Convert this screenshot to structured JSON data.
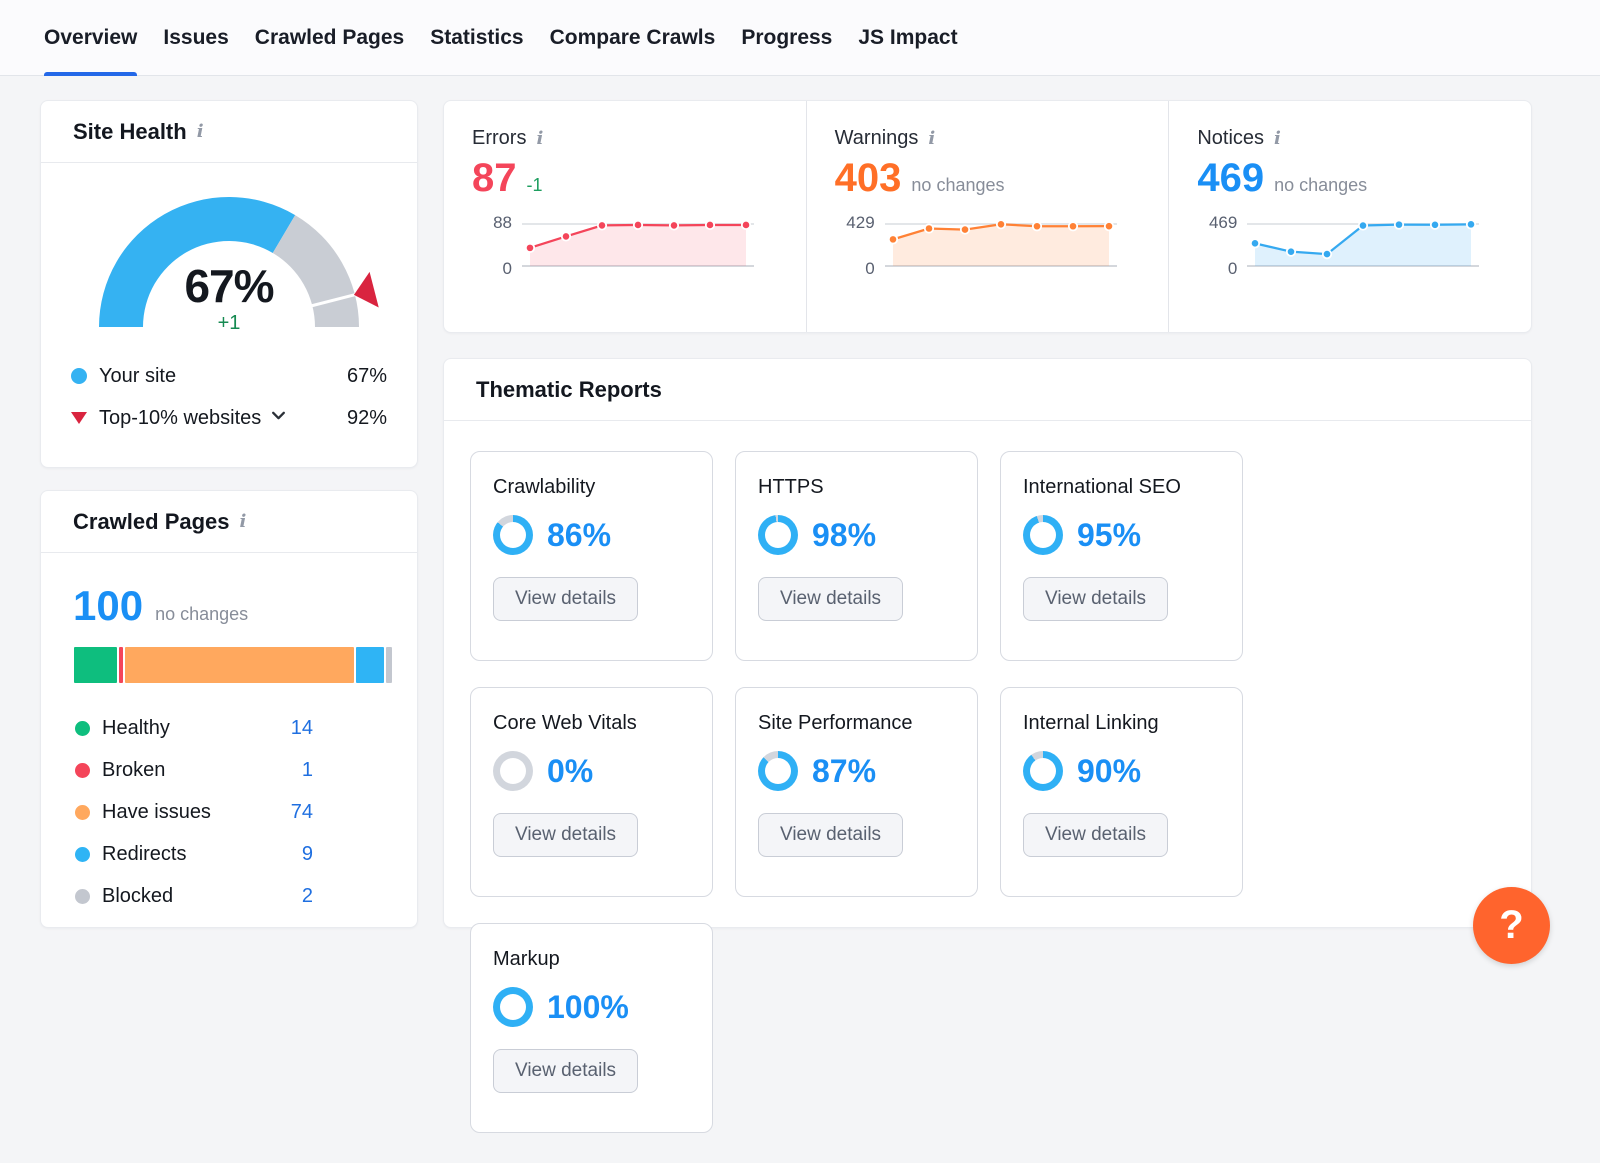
{
  "tabs": [
    {
      "label": "Overview",
      "active": true
    },
    {
      "label": "Issues",
      "active": false
    },
    {
      "label": "Crawled Pages",
      "active": false
    },
    {
      "label": "Statistics",
      "active": false
    },
    {
      "label": "Compare Crawls",
      "active": false
    },
    {
      "label": "Progress",
      "active": false
    },
    {
      "label": "JS Impact",
      "active": false
    }
  ],
  "site_health": {
    "title": "Site Health",
    "score": 67,
    "score_label": "67%",
    "delta": "+1",
    "benchmark": 92,
    "colors": {
      "arc": "#35b2f2",
      "track": "#c9cdd4",
      "marker": "#d9243f"
    },
    "legend": [
      {
        "label": "Your site",
        "value": "67%",
        "marker": "dot",
        "color": "#35b2f2",
        "has_chevron": false
      },
      {
        "label": "Top-10% websites",
        "value": "92%",
        "marker": "triangle",
        "color": "#d9243f",
        "has_chevron": true
      }
    ]
  },
  "crawled_pages": {
    "title": "Crawled Pages",
    "total": "100",
    "change": "no changes",
    "segments": [
      {
        "label": "Healthy",
        "value": 14,
        "color": "#0ebe7e"
      },
      {
        "label": "Broken",
        "value": 1,
        "color": "#f4455a"
      },
      {
        "label": "Have issues",
        "value": 74,
        "color": "#ffa85e"
      },
      {
        "label": "Redirects",
        "value": 9,
        "color": "#2fb4f5"
      },
      {
        "label": "Blocked",
        "value": 2,
        "color": "#c3c7cf"
      }
    ]
  },
  "stats": [
    {
      "title": "Errors",
      "value": "87",
      "delta": "-1",
      "value_color": "#f4455a",
      "delta_color": "#1e9e5f",
      "line_color": "#f4455a",
      "fill_color": "rgba(244,69,90,0.13)",
      "axis_max_label": "88",
      "axis_min_label": "0",
      "chart": {
        "type": "area",
        "ylim": [
          0,
          88
        ],
        "points": [
          38,
          62,
          85,
          86,
          85,
          86,
          86
        ]
      }
    },
    {
      "title": "Warnings",
      "value": "403",
      "delta": "no changes",
      "value_color": "#ff6f27",
      "delta_color": "#878d99",
      "line_color": "#ff8135",
      "fill_color": "rgba(255,129,53,0.16)",
      "axis_max_label": "429",
      "axis_min_label": "0",
      "chart": {
        "type": "area",
        "ylim": [
          0,
          429
        ],
        "points": [
          272,
          383,
          372,
          426,
          406,
          406,
          407
        ]
      }
    },
    {
      "title": "Notices",
      "value": "469",
      "delta": "no changes",
      "value_color": "#1a8ff5",
      "delta_color": "#878d99",
      "line_color": "#35a9f0",
      "fill_color": "rgba(53,169,240,0.16)",
      "axis_max_label": "469",
      "axis_min_label": "0",
      "chart": {
        "type": "area",
        "ylim": [
          0,
          469
        ],
        "points": [
          253,
          160,
          133,
          452,
          462,
          460,
          465
        ]
      }
    }
  ],
  "thematic": {
    "title": "Thematic Reports",
    "button_label": "View details",
    "donut_color": "#2fb0f5",
    "donut_track": "#d2d6dd",
    "cards": [
      {
        "title": "Crawlability",
        "percent": 86,
        "label": "86%"
      },
      {
        "title": "HTTPS",
        "percent": 98,
        "label": "98%"
      },
      {
        "title": "International SEO",
        "percent": 95,
        "label": "95%"
      },
      {
        "title": "Core Web Vitals",
        "percent": 0,
        "label": "0%"
      },
      {
        "title": "Site Performance",
        "percent": 87,
        "label": "87%"
      },
      {
        "title": "Internal Linking",
        "percent": 90,
        "label": "90%"
      },
      {
        "title": "Markup",
        "percent": 100,
        "label": "100%"
      }
    ]
  },
  "help_button": {
    "label": "?"
  }
}
